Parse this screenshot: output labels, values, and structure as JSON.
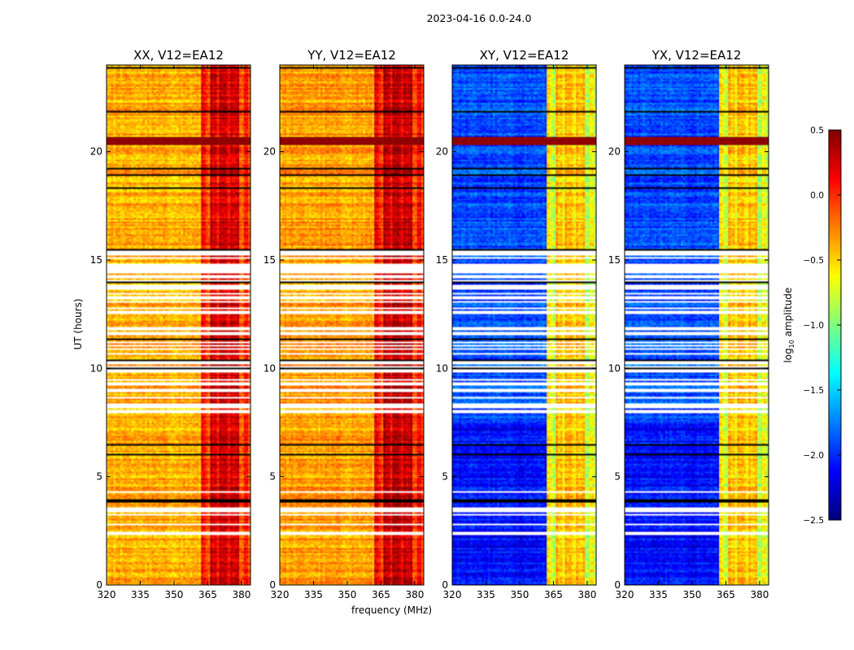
{
  "suptitle": "2023-04-16 0.0-24.0",
  "xlabel": "frequency (MHz)",
  "ylabel": "UT (hours)",
  "colorbar_label": "log10 amplitude",
  "chart_data": {
    "type": "heatmap",
    "title": "2023-04-16 0.0-24.0",
    "xlabel": "frequency (MHz)",
    "ylabel": "UT (hours)",
    "xlim": [
      320,
      384
    ],
    "ylim": [
      0,
      24
    ],
    "xticks": [
      "320",
      "335",
      "350",
      "365",
      "380"
    ],
    "yticks": [
      "0",
      "5",
      "10",
      "15",
      "20"
    ],
    "colormap": "jet",
    "colorbar": {
      "label": "log10 amplitude",
      "range": [
        -2.5,
        0.5
      ],
      "ticks": [
        "0.5",
        "0.0",
        "−0.5",
        "−1.0",
        "−1.5",
        "−2.0",
        "−2.5"
      ]
    },
    "panels": [
      {
        "title": "XX, V12=EA12",
        "low_band_level": -0.4,
        "high_band_start_mhz": 362,
        "high_band_level": 0.1
      },
      {
        "title": "YY, V12=EA12",
        "low_band_level": -0.35,
        "high_band_start_mhz": 362,
        "high_band_level": 0.15
      },
      {
        "title": "XY, V12=EA12",
        "low_band_level": -1.9,
        "high_band_start_mhz": 362,
        "high_band_level": -0.6
      },
      {
        "title": "YX, V12=EA12",
        "low_band_level": -1.9,
        "high_band_start_mhz": 362,
        "high_band_level": -0.6
      }
    ]
  }
}
